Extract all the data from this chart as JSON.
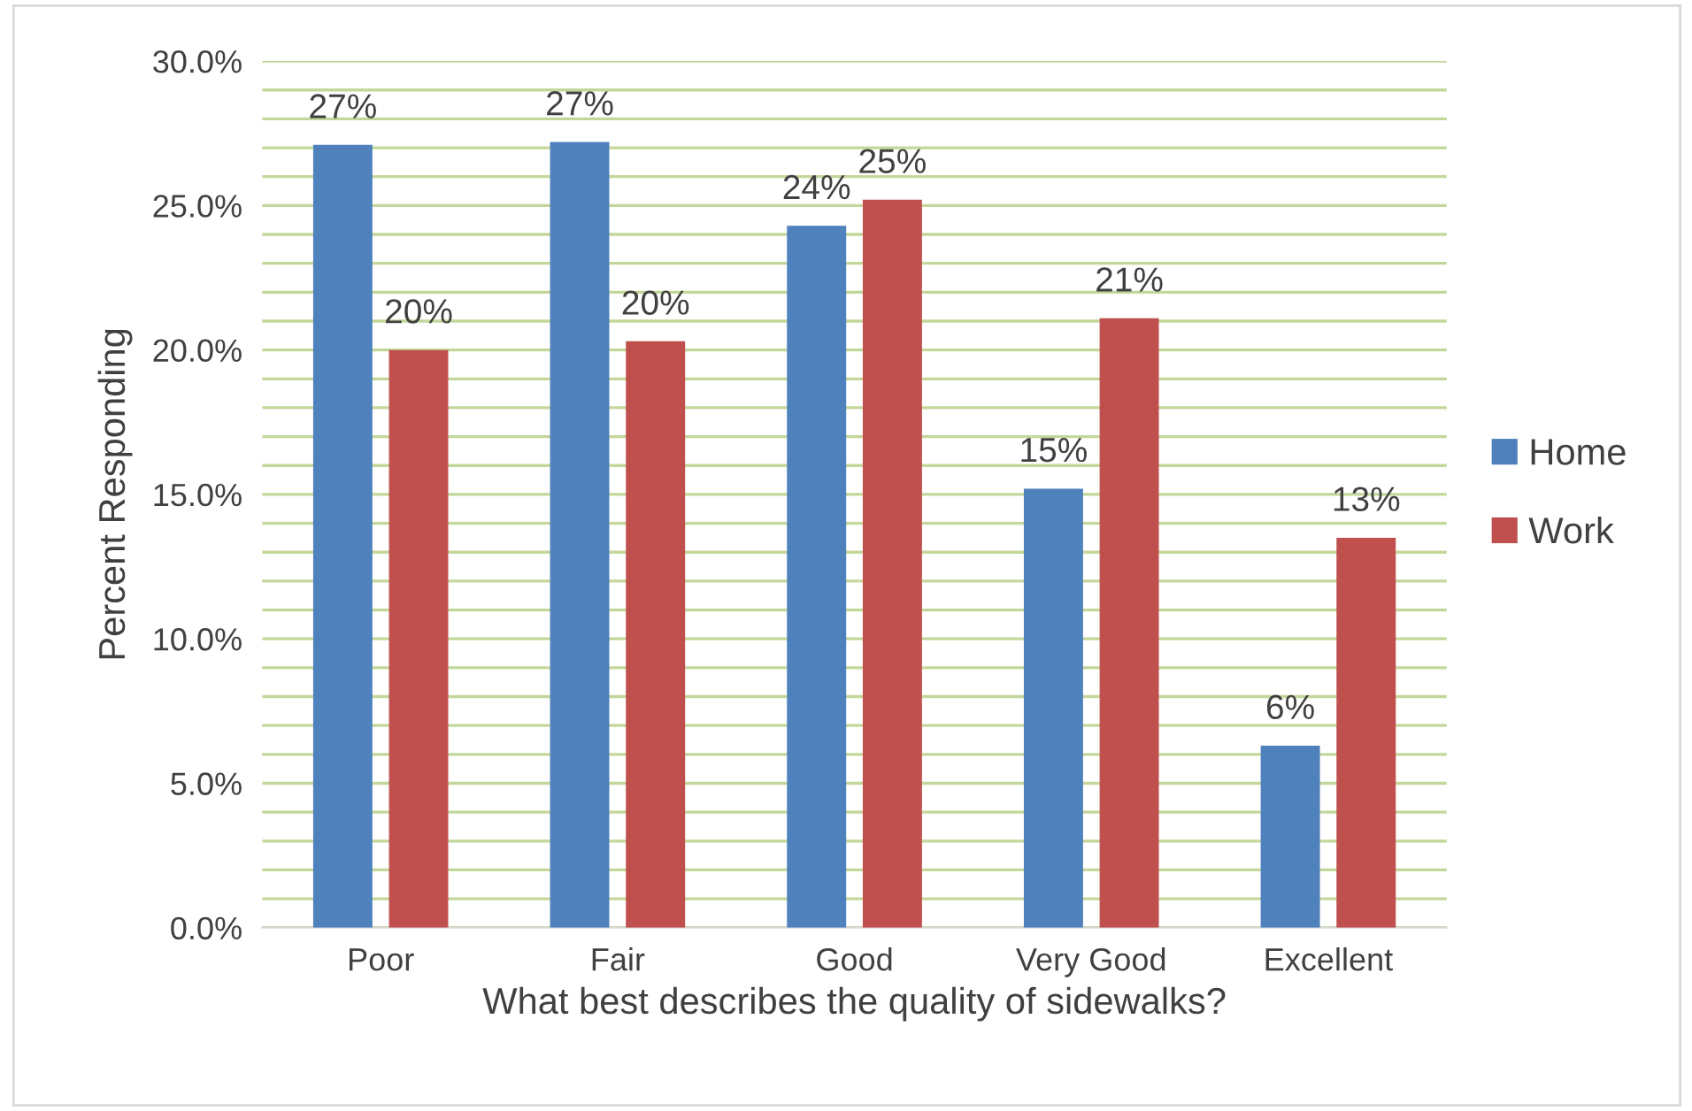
{
  "chart_data": {
    "type": "bar",
    "xlabel": "What best describes the quality of sidewalks?",
    "ylabel": "Percent Responding",
    "categories": [
      "Poor",
      "Fair",
      "Good",
      "Very Good",
      "Excellent"
    ],
    "series": [
      {
        "name": "Home",
        "color": "#4f81bd",
        "values": [
          27.1,
          27.2,
          24.3,
          15.2,
          6.3
        ],
        "value_labels": [
          "27%",
          "27%",
          "24%",
          "15%",
          "6%"
        ]
      },
      {
        "name": "Work",
        "color": "#c0504d",
        "values": [
          20.0,
          20.3,
          25.2,
          21.1,
          13.5
        ],
        "value_labels": [
          "20%",
          "20%",
          "25%",
          "21%",
          "13%"
        ]
      }
    ],
    "ylim": [
      0,
      30
    ],
    "yticks": [
      {
        "value": 0,
        "label": "0.0%"
      },
      {
        "value": 1,
        "label": null
      },
      {
        "value": 2,
        "label": null
      },
      {
        "value": 3,
        "label": null
      },
      {
        "value": 4,
        "label": null
      },
      {
        "value": 5,
        "label": "5.0%"
      },
      {
        "value": 6,
        "label": null
      },
      {
        "value": 7,
        "label": null
      },
      {
        "value": 8,
        "label": null
      },
      {
        "value": 9,
        "label": null
      },
      {
        "value": 10,
        "label": "10.0%"
      },
      {
        "value": 11,
        "label": null
      },
      {
        "value": 12,
        "label": null
      },
      {
        "value": 13,
        "label": null
      },
      {
        "value": 14,
        "label": null
      },
      {
        "value": 15,
        "label": "15.0%"
      },
      {
        "value": 16,
        "label": null
      },
      {
        "value": 17,
        "label": null
      },
      {
        "value": 18,
        "label": null
      },
      {
        "value": 19,
        "label": null
      },
      {
        "value": 20,
        "label": "20.0%"
      },
      {
        "value": 21,
        "label": null
      },
      {
        "value": 22,
        "label": null
      },
      {
        "value": 23,
        "label": null
      },
      {
        "value": 24,
        "label": null
      },
      {
        "value": 25,
        "label": "25.0%"
      },
      {
        "value": 26,
        "label": null
      },
      {
        "value": 27,
        "label": null
      },
      {
        "value": 28,
        "label": null
      },
      {
        "value": 29,
        "label": null
      },
      {
        "value": 30,
        "label": "30.0%"
      }
    ],
    "grid": "y",
    "legend": "right"
  }
}
